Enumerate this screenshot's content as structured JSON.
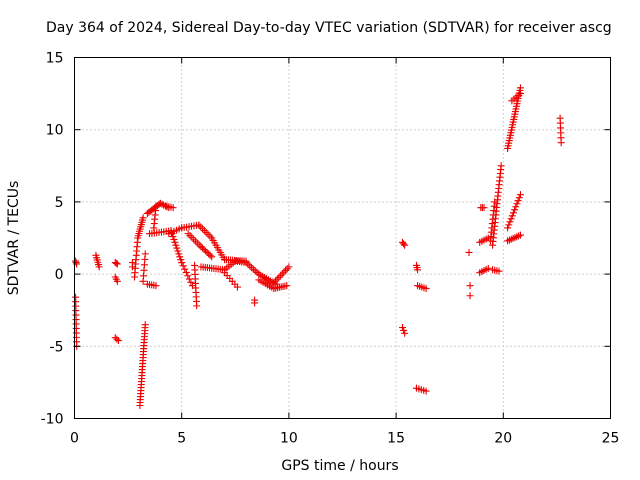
{
  "chart_data": {
    "type": "scatter",
    "title": "Day 364 of 2024, Sidereal Day-to-day VTEC variation (SDTVAR) for receiver ascg",
    "xlabel": "GPS time / hours",
    "ylabel": "SDTVAR / TECUs",
    "xlim": [
      0,
      25
    ],
    "ylim": [
      -10,
      15
    ],
    "xticks": [
      "0",
      "5",
      "10",
      "15",
      "20",
      "25"
    ],
    "yticks": [
      "-10",
      "-5",
      "0",
      "5",
      "10",
      "15"
    ],
    "grid": true,
    "marker": "plus",
    "series_color": "#ee0000",
    "segments": [
      {
        "from": [
          0.05,
          0.9
        ],
        "to": [
          0.1,
          0.7
        ],
        "n": 3
      },
      {
        "from": [
          0.05,
          -1.6
        ],
        "to": [
          0.1,
          -5.0
        ],
        "n": 12
      },
      {
        "from": [
          1.0,
          1.3
        ],
        "to": [
          1.15,
          0.5
        ],
        "n": 6
      },
      {
        "from": [
          1.9,
          0.8
        ],
        "to": [
          2.0,
          0.7
        ],
        "n": 3
      },
      {
        "from": [
          1.9,
          -0.2
        ],
        "to": [
          2.0,
          -0.5
        ],
        "n": 3
      },
      {
        "from": [
          1.9,
          -4.4
        ],
        "to": [
          2.05,
          -4.6
        ],
        "n": 3
      },
      {
        "from": [
          2.7,
          0.8
        ],
        "to": [
          2.7,
          0.5
        ],
        "n": 2
      },
      {
        "from": [
          2.8,
          -0.2
        ],
        "to": [
          2.95,
          2.5
        ],
        "n": 10
      },
      {
        "from": [
          2.95,
          2.5
        ],
        "to": [
          3.2,
          3.9
        ],
        "n": 10
      },
      {
        "from": [
          3.2,
          -0.5
        ],
        "to": [
          3.3,
          1.4
        ],
        "n": 6
      },
      {
        "from": [
          3.05,
          -9.1
        ],
        "to": [
          3.3,
          -3.5
        ],
        "n": 28
      },
      {
        "from": [
          3.4,
          -0.7
        ],
        "to": [
          3.8,
          -0.8
        ],
        "n": 5
      },
      {
        "from": [
          3.4,
          4.2
        ],
        "to": [
          4.0,
          4.9
        ],
        "n": 10
      },
      {
        "from": [
          4.0,
          4.9
        ],
        "to": [
          4.4,
          4.6
        ],
        "n": 6
      },
      {
        "from": [
          3.5,
          2.8
        ],
        "to": [
          4.5,
          3.0
        ],
        "n": 10
      },
      {
        "from": [
          3.7,
          3.2
        ],
        "to": [
          3.8,
          4.7
        ],
        "n": 6
      },
      {
        "from": [
          4.3,
          4.7
        ],
        "to": [
          4.6,
          4.6
        ],
        "n": 4
      },
      {
        "from": [
          4.5,
          3.0
        ],
        "to": [
          5.0,
          0.8
        ],
        "n": 12
      },
      {
        "from": [
          5.0,
          0.8
        ],
        "to": [
          5.5,
          -0.8
        ],
        "n": 8
      },
      {
        "from": [
          5.6,
          0.6
        ],
        "to": [
          5.7,
          -2.2
        ],
        "n": 10
      },
      {
        "from": [
          4.4,
          2.8
        ],
        "to": [
          5.0,
          3.2
        ],
        "n": 6
      },
      {
        "from": [
          5.0,
          3.2
        ],
        "to": [
          5.8,
          3.4
        ],
        "n": 8
      },
      {
        "from": [
          5.8,
          3.4
        ],
        "to": [
          6.4,
          2.5
        ],
        "n": 8
      },
      {
        "from": [
          6.4,
          2.5
        ],
        "to": [
          7.0,
          1.0
        ],
        "n": 10
      },
      {
        "from": [
          7.0,
          1.0
        ],
        "to": [
          8.0,
          0.9
        ],
        "n": 12
      },
      {
        "from": [
          5.3,
          2.8
        ],
        "to": [
          5.9,
          1.9
        ],
        "n": 8
      },
      {
        "from": [
          5.9,
          1.9
        ],
        "to": [
          6.4,
          1.2
        ],
        "n": 8
      },
      {
        "from": [
          5.9,
          0.5
        ],
        "to": [
          7.0,
          0.3
        ],
        "n": 12
      },
      {
        "from": [
          7.0,
          0.3
        ],
        "to": [
          7.5,
          0.9
        ],
        "n": 6
      },
      {
        "from": [
          7.5,
          0.9
        ],
        "to": [
          8.0,
          0.8
        ],
        "n": 6
      },
      {
        "from": [
          8.0,
          0.8
        ],
        "to": [
          8.6,
          0.0
        ],
        "n": 8
      },
      {
        "from": [
          7.0,
          0.1
        ],
        "to": [
          7.6,
          -0.9
        ],
        "n": 6
      },
      {
        "from": [
          8.4,
          -1.8
        ],
        "to": [
          8.4,
          -2.0
        ],
        "n": 2
      },
      {
        "from": [
          8.6,
          0.0
        ],
        "to": [
          9.4,
          -0.7
        ],
        "n": 10
      },
      {
        "from": [
          8.6,
          -0.4
        ],
        "to": [
          9.3,
          -1.0
        ],
        "n": 8
      },
      {
        "from": [
          9.3,
          -1.0
        ],
        "to": [
          9.9,
          -0.8
        ],
        "n": 8
      },
      {
        "from": [
          9.3,
          -0.6
        ],
        "to": [
          10.0,
          0.5
        ],
        "n": 10
      },
      {
        "from": [
          15.3,
          2.2
        ],
        "to": [
          15.4,
          2.0
        ],
        "n": 3
      },
      {
        "from": [
          15.3,
          -3.7
        ],
        "to": [
          15.4,
          -4.1
        ],
        "n": 3
      },
      {
        "from": [
          15.95,
          0.6
        ],
        "to": [
          16.0,
          0.3
        ],
        "n": 3
      },
      {
        "from": [
          16.0,
          -0.8
        ],
        "to": [
          16.4,
          -1.0
        ],
        "n": 5
      },
      {
        "from": [
          15.95,
          -7.9
        ],
        "to": [
          16.4,
          -8.1
        ],
        "n": 5
      },
      {
        "from": [
          18.4,
          1.5
        ],
        "to": [
          18.4,
          1.5
        ],
        "n": 1
      },
      {
        "from": [
          18.45,
          -0.8
        ],
        "to": [
          18.45,
          -1.5
        ],
        "n": 2
      },
      {
        "from": [
          18.9,
          0.1
        ],
        "to": [
          19.3,
          0.4
        ],
        "n": 5
      },
      {
        "from": [
          18.9,
          2.2
        ],
        "to": [
          19.3,
          2.5
        ],
        "n": 5
      },
      {
        "from": [
          18.95,
          4.6
        ],
        "to": [
          19.1,
          4.6
        ],
        "n": 3
      },
      {
        "from": [
          19.5,
          0.3
        ],
        "to": [
          19.8,
          0.2
        ],
        "n": 4
      },
      {
        "from": [
          19.5,
          2.0
        ],
        "to": [
          19.9,
          7.5
        ],
        "n": 22
      },
      {
        "from": [
          19.4,
          2.3
        ],
        "to": [
          19.6,
          5.0
        ],
        "n": 10
      },
      {
        "from": [
          20.2,
          2.3
        ],
        "to": [
          20.8,
          2.7
        ],
        "n": 8
      },
      {
        "from": [
          20.2,
          3.2
        ],
        "to": [
          20.8,
          5.5
        ],
        "n": 12
      },
      {
        "from": [
          20.2,
          8.7
        ],
        "to": [
          20.8,
          12.9
        ],
        "n": 24
      },
      {
        "from": [
          20.4,
          12.0
        ],
        "to": [
          20.8,
          12.5
        ],
        "n": 5
      },
      {
        "from": [
          22.65,
          10.8
        ],
        "to": [
          22.7,
          9.1
        ],
        "n": 6
      }
    ]
  }
}
